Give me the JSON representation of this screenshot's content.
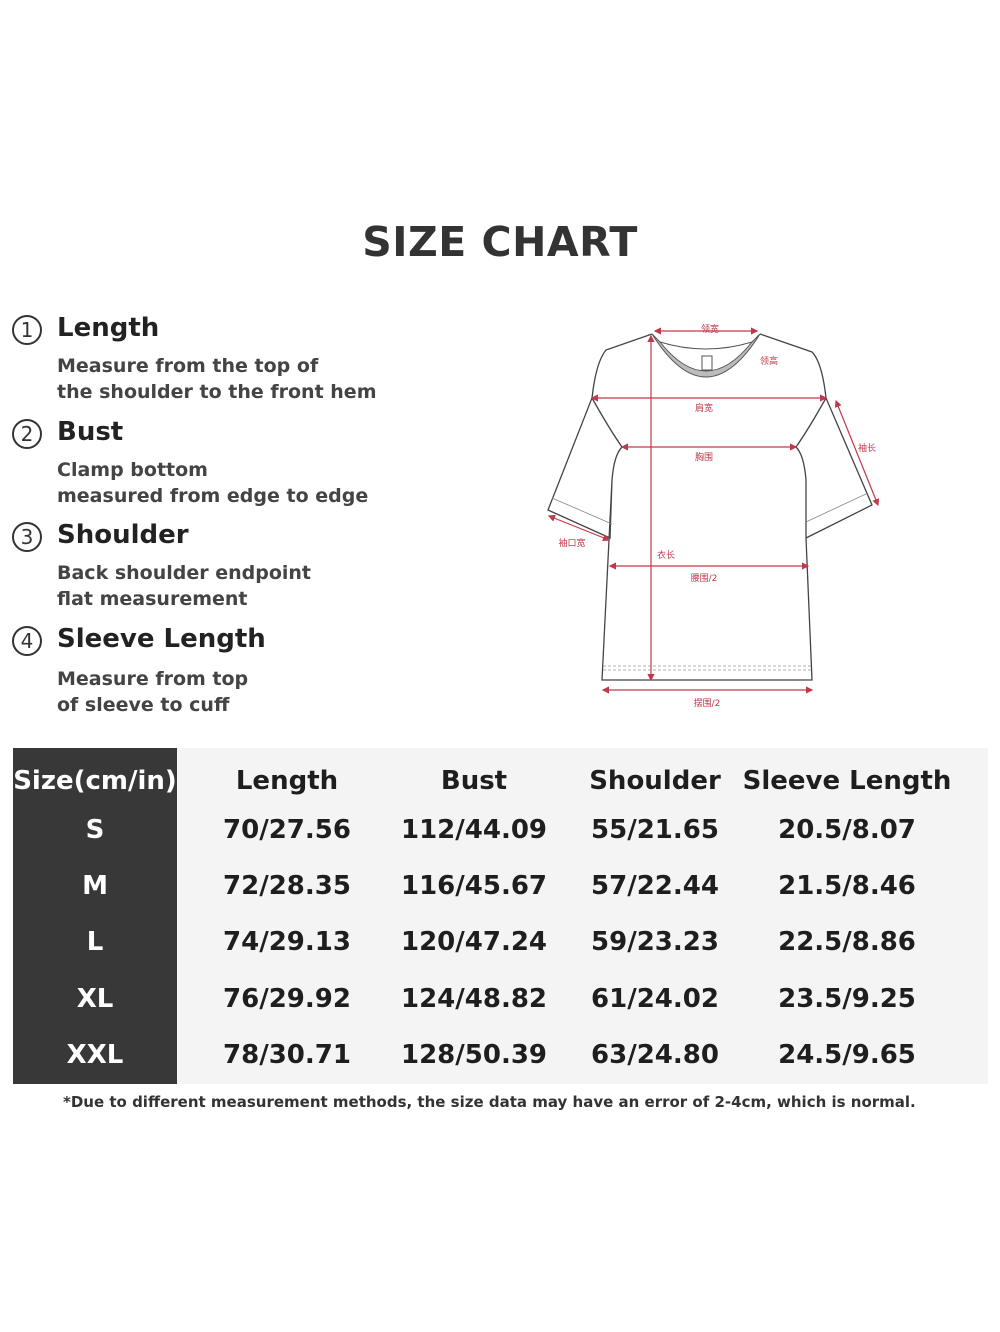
{
  "title": "SIZE CHART",
  "measures": [
    {
      "num": "1",
      "heading": "Length",
      "lines": [
        "Measure from the top of",
        "the shoulder to the front hem"
      ]
    },
    {
      "num": "2",
      "heading": "Bust",
      "lines": [
        "Clamp bottom",
        "measured from edge to edge"
      ]
    },
    {
      "num": "3",
      "heading": "Shoulder",
      "lines": [
        "Back shoulder endpoint",
        "flat measurement"
      ]
    },
    {
      "num": "4",
      "heading": "Sleeve Length",
      "lines": [
        "Measure from top",
        "of sleeve to cuff"
      ]
    }
  ],
  "diagram": {
    "labels": {
      "neck_width": "领宽",
      "neck_height": "领高",
      "shoulder": "肩宽",
      "bust": "胸围",
      "sleeve": "袖长",
      "cuff": "袖口宽",
      "length": "衣长",
      "waist": "腰围/2",
      "hem": "摆围/2"
    },
    "line_color": "#c0394b"
  },
  "table": {
    "headers": [
      "Size(cm/in)",
      "Length",
      "Bust",
      "Shoulder",
      "Sleeve Length"
    ],
    "rows": [
      [
        "S",
        "70/27.56",
        "112/44.09",
        "55/21.65",
        "20.5/8.07"
      ],
      [
        "M",
        "72/28.35",
        "116/45.67",
        "57/22.44",
        "21.5/8.46"
      ],
      [
        "L",
        "74/29.13",
        "120/47.24",
        "59/23.23",
        "22.5/8.86"
      ],
      [
        "XL",
        "76/29.92",
        "124/48.82",
        "61/24.02",
        "23.5/9.25"
      ],
      [
        "XXL",
        "78/30.71",
        "128/50.39",
        "63/24.80",
        "24.5/9.65"
      ]
    ]
  },
  "note": "*Due to different measurement methods, the size data may have an error of 2-4cm, which is normal."
}
